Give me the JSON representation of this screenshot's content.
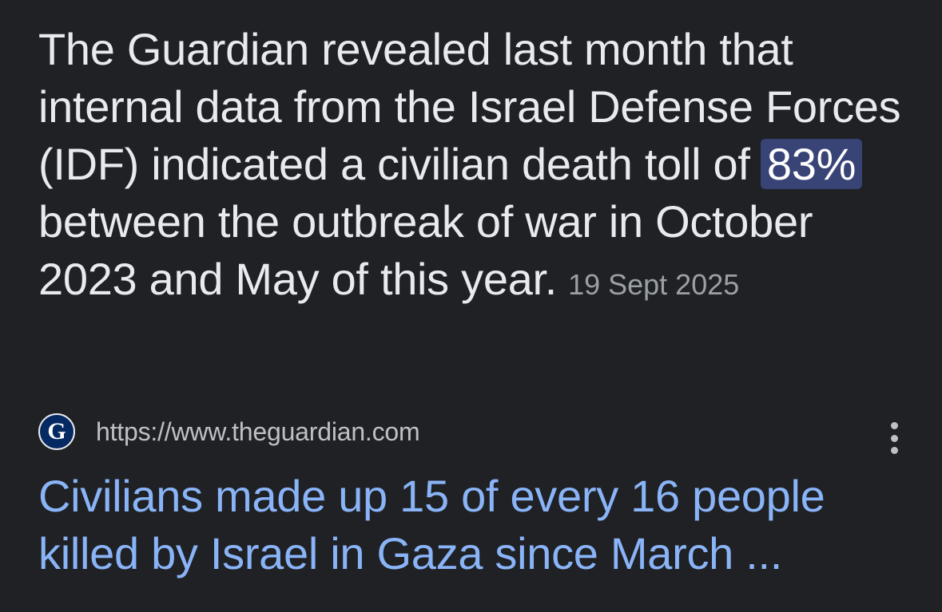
{
  "snippet": {
    "text_before": "The Guardian revealed last month that internal data from the Israel Defense Forces (IDF) indicated a civilian death toll of ",
    "highlight": "83%",
    "text_after": " between the outbreak of war in October 2023 and May of this year.",
    "date": "19 Sept 2025",
    "highlight_color": "#394476"
  },
  "source": {
    "favicon_letter": "G",
    "favicon_icon": "guardian-logo-icon",
    "url": "https://www.theguardian.com",
    "menu_icon": "more-vert-icon"
  },
  "result": {
    "title": "Civilians made up 15 of every 16 people killed by Israel in Gaza since March ...",
    "link_color": "#8ab4f8"
  }
}
